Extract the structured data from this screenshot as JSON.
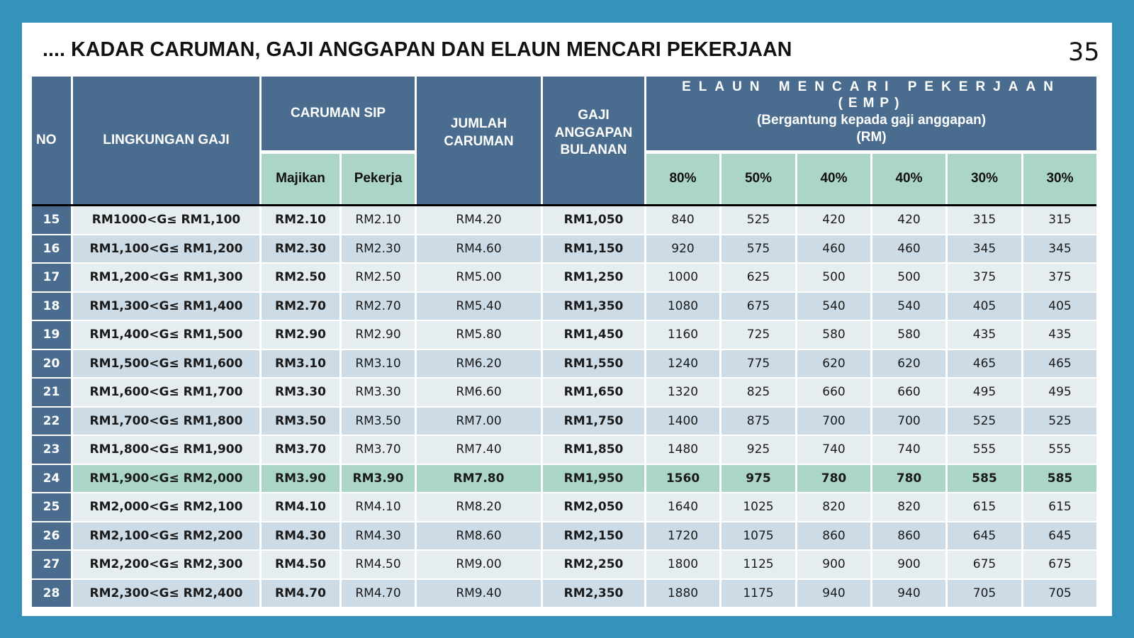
{
  "slide": {
    "title": ".... KADAR CARUMAN, GAJI ANGGAPAN DAN ELAUN MENCARI PEKERJAAN",
    "page_number": "35"
  },
  "colors": {
    "background": "#3593bb",
    "header_dark": "#4a6d8f",
    "header_green": "#acd5c9",
    "row_light": "#e6edf1",
    "row_dark": "#cddbe6",
    "row_highlight": "#acd5c9"
  },
  "table": {
    "headers": {
      "no": "NO",
      "lingkungan_gaji": "LINGKUNGAN GAJI",
      "caruman_sip": "CARUMAN SIP",
      "majikan": "Majikan",
      "pekerja": "Pekerja",
      "jumlah_caruman": "JUMLAH CARUMAN",
      "gaji_anggapan": "GAJI ANGGAPAN BULANAN",
      "emp_line1": "ELAUN MENCARI PEKERJAAN",
      "emp_line2": "(EMP)",
      "emp_line3": "(Bergantung kepada gaji anggapan)",
      "emp_line4": "(RM)",
      "emp_cols": [
        "80%",
        "50%",
        "40%",
        "40%",
        "30%",
        "30%"
      ]
    },
    "highlighted_row_no": "24",
    "rows": [
      {
        "no": "15",
        "range": "RM1000<G≤ RM1,100",
        "majikan": "RM2.10",
        "pekerja": "RM2.10",
        "jumlah": "RM4.20",
        "gaji": "RM1,050",
        "emp": [
          "840",
          "525",
          "420",
          "420",
          "315",
          "315"
        ]
      },
      {
        "no": "16",
        "range": "RM1,100<G≤ RM1,200",
        "majikan": "RM2.30",
        "pekerja": "RM2.30",
        "jumlah": "RM4.60",
        "gaji": "RM1,150",
        "emp": [
          "920",
          "575",
          "460",
          "460",
          "345",
          "345"
        ]
      },
      {
        "no": "17",
        "range": "RM1,200<G≤ RM1,300",
        "majikan": "RM2.50",
        "pekerja": "RM2.50",
        "jumlah": "RM5.00",
        "gaji": "RM1,250",
        "emp": [
          "1000",
          "625",
          "500",
          "500",
          "375",
          "375"
        ]
      },
      {
        "no": "18",
        "range": "RM1,300<G≤ RM1,400",
        "majikan": "RM2.70",
        "pekerja": "RM2.70",
        "jumlah": "RM5.40",
        "gaji": "RM1,350",
        "emp": [
          "1080",
          "675",
          "540",
          "540",
          "405",
          "405"
        ]
      },
      {
        "no": "19",
        "range": "RM1,400<G≤ RM1,500",
        "majikan": "RM2.90",
        "pekerja": "RM2.90",
        "jumlah": "RM5.80",
        "gaji": "RM1,450",
        "emp": [
          "1160",
          "725",
          "580",
          "580",
          "435",
          "435"
        ]
      },
      {
        "no": "20",
        "range": "RM1,500<G≤ RM1,600",
        "majikan": "RM3.10",
        "pekerja": "RM3.10",
        "jumlah": "RM6.20",
        "gaji": "RM1,550",
        "emp": [
          "1240",
          "775",
          "620",
          "620",
          "465",
          "465"
        ]
      },
      {
        "no": "21",
        "range": "RM1,600<G≤ RM1,700",
        "majikan": "RM3.30",
        "pekerja": "RM3.30",
        "jumlah": "RM6.60",
        "gaji": "RM1,650",
        "emp": [
          "1320",
          "825",
          "660",
          "660",
          "495",
          "495"
        ]
      },
      {
        "no": "22",
        "range": "RM1,700<G≤ RM1,800",
        "majikan": "RM3.50",
        "pekerja": "RM3.50",
        "jumlah": "RM7.00",
        "gaji": "RM1,750",
        "emp": [
          "1400",
          "875",
          "700",
          "700",
          "525",
          "525"
        ]
      },
      {
        "no": "23",
        "range": "RM1,800<G≤ RM1,900",
        "majikan": "RM3.70",
        "pekerja": "RM3.70",
        "jumlah": "RM7.40",
        "gaji": "RM1,850",
        "emp": [
          "1480",
          "925",
          "740",
          "740",
          "555",
          "555"
        ]
      },
      {
        "no": "24",
        "range": "RM1,900<G≤ RM2,000",
        "majikan": "RM3.90",
        "pekerja": "RM3.90",
        "jumlah": "RM7.80",
        "gaji": "RM1,950",
        "emp": [
          "1560",
          "975",
          "780",
          "780",
          "585",
          "585"
        ]
      },
      {
        "no": "25",
        "range": "RM2,000<G≤ RM2,100",
        "majikan": "RM4.10",
        "pekerja": "RM4.10",
        "jumlah": "RM8.20",
        "gaji": "RM2,050",
        "emp": [
          "1640",
          "1025",
          "820",
          "820",
          "615",
          "615"
        ]
      },
      {
        "no": "26",
        "range": "RM2,100<G≤ RM2,200",
        "majikan": "RM4.30",
        "pekerja": "RM4.30",
        "jumlah": "RM8.60",
        "gaji": "RM2,150",
        "emp": [
          "1720",
          "1075",
          "860",
          "860",
          "645",
          "645"
        ]
      },
      {
        "no": "27",
        "range": "RM2,200<G≤ RM2,300",
        "majikan": "RM4.50",
        "pekerja": "RM4.50",
        "jumlah": "RM9.00",
        "gaji": "RM2,250",
        "emp": [
          "1800",
          "1125",
          "900",
          "900",
          "675",
          "675"
        ]
      },
      {
        "no": "28",
        "range": "RM2,300<G≤ RM2,400",
        "majikan": "RM4.70",
        "pekerja": "RM4.70",
        "jumlah": "RM9.40",
        "gaji": "RM2,350",
        "emp": [
          "1880",
          "1175",
          "940",
          "940",
          "705",
          "705"
        ]
      }
    ]
  }
}
